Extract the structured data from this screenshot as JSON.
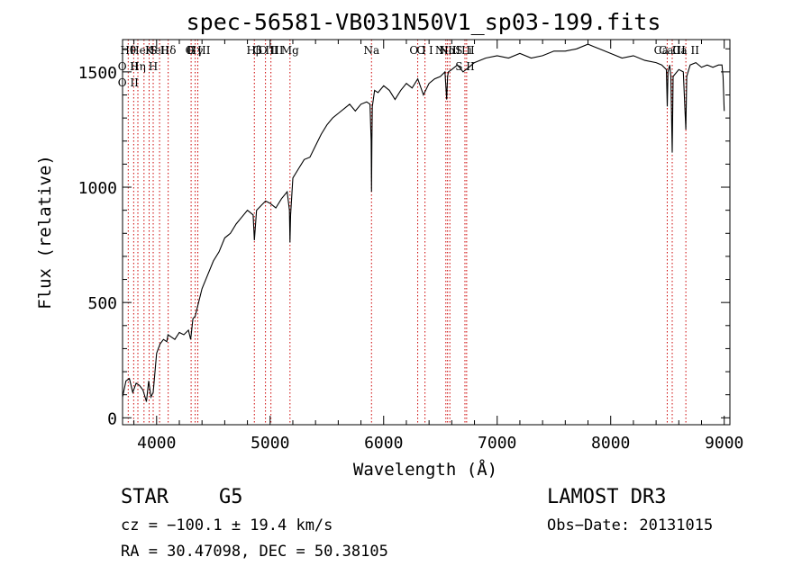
{
  "chart_data": {
    "type": "line",
    "title": "spec-56581-VB031N50V1_sp03-199.fits",
    "xlabel": "Wavelength (Å)",
    "ylabel": "Flux (relative)",
    "xlim": [
      3700,
      9050
    ],
    "ylim": [
      -30,
      1640
    ],
    "xticks": [
      4000,
      5000,
      6000,
      7000,
      8000,
      9000
    ],
    "yticks": [
      0,
      500,
      1000,
      1500
    ],
    "series": [
      {
        "name": "flux",
        "x": [
          3700,
          3730,
          3760,
          3790,
          3820,
          3850,
          3880,
          3910,
          3930,
          3950,
          3970,
          4000,
          4030,
          4060,
          4090,
          4100,
          4130,
          4160,
          4200,
          4240,
          4280,
          4300,
          4320,
          4340,
          4360,
          4400,
          4450,
          4500,
          4550,
          4600,
          4650,
          4700,
          4750,
          4800,
          4850,
          4861,
          4880,
          4920,
          4960,
          5000,
          5050,
          5100,
          5150,
          5170,
          5175,
          5180,
          5200,
          5250,
          5300,
          5350,
          5400,
          5450,
          5500,
          5550,
          5600,
          5650,
          5700,
          5750,
          5800,
          5850,
          5880,
          5890,
          5893,
          5896,
          5900,
          5920,
          5950,
          6000,
          6050,
          6100,
          6150,
          6200,
          6250,
          6300,
          6350,
          6400,
          6450,
          6500,
          6540,
          6555,
          6563,
          6570,
          6600,
          6650,
          6700,
          6750,
          6800,
          6900,
          7000,
          7100,
          7200,
          7300,
          7400,
          7500,
          7600,
          7700,
          7800,
          7850,
          7900,
          8000,
          8100,
          8200,
          8300,
          8400,
          8450,
          8490,
          8498,
          8505,
          8520,
          8530,
          8542,
          8550,
          8600,
          8640,
          8662,
          8670,
          8700,
          8750,
          8800,
          8850,
          8900,
          8950,
          8980,
          8990,
          9000
        ],
        "values": [
          90,
          160,
          170,
          110,
          150,
          140,
          120,
          70,
          160,
          90,
          110,
          280,
          320,
          340,
          330,
          360,
          350,
          340,
          370,
          360,
          380,
          340,
          430,
          440,
          480,
          560,
          620,
          680,
          720,
          780,
          800,
          840,
          870,
          900,
          880,
          770,
          900,
          920,
          940,
          930,
          910,
          950,
          980,
          900,
          760,
          880,
          1040,
          1080,
          1120,
          1130,
          1180,
          1230,
          1270,
          1300,
          1320,
          1340,
          1360,
          1330,
          1360,
          1370,
          1360,
          1200,
          980,
          1200,
          1350,
          1420,
          1410,
          1440,
          1420,
          1380,
          1420,
          1450,
          1430,
          1470,
          1400,
          1450,
          1470,
          1480,
          1500,
          1380,
          1480,
          1500,
          1510,
          1530,
          1500,
          1520,
          1540,
          1560,
          1570,
          1560,
          1580,
          1560,
          1570,
          1590,
          1590,
          1600,
          1620,
          1610,
          1600,
          1580,
          1560,
          1570,
          1550,
          1540,
          1530,
          1510,
          1350,
          1500,
          1530,
          1480,
          1150,
          1480,
          1510,
          1500,
          1250,
          1480,
          1530,
          1540,
          1520,
          1530,
          1520,
          1530,
          1530,
          1480,
          1330
        ]
      }
    ],
    "lines": [
      {
        "wave": 3750,
        "labels": [
          "Hθ",
          "O II",
          "O II"
        ]
      },
      {
        "wave": 3798,
        "labels": []
      },
      {
        "wave": 3835,
        "labels": [
          "He",
          "Hη"
        ]
      },
      {
        "wave": 3889,
        "labels": []
      },
      {
        "wave": 3934,
        "labels": [
          "K"
        ]
      },
      {
        "wave": 3970,
        "labels": [
          "He",
          "H"
        ]
      },
      {
        "wave": 4026,
        "labels": [
          "S II"
        ]
      },
      {
        "wave": 4102,
        "labels": [
          "Hδ"
        ]
      },
      {
        "wave": 4304,
        "labels": [
          "G"
        ]
      },
      {
        "wave": 4340,
        "labels": [
          "Hγ"
        ]
      },
      {
        "wave": 4363,
        "labels": [
          "O III"
        ]
      },
      {
        "wave": 4861,
        "labels": [
          "Hβ"
        ]
      },
      {
        "wave": 4959,
        "labels": [
          "O III"
        ]
      },
      {
        "wave": 5007,
        "labels": [
          "O III"
        ]
      },
      {
        "wave": 5175,
        "labels": [
          "Mg"
        ]
      },
      {
        "wave": 5893,
        "labels": [
          "Na"
        ]
      },
      {
        "wave": 6300,
        "labels": [
          "O I"
        ]
      },
      {
        "wave": 6364,
        "labels": [
          "O I"
        ]
      },
      {
        "wave": 6548,
        "labels": [
          "N II"
        ]
      },
      {
        "wave": 6563,
        "labels": [
          "Hα"
        ]
      },
      {
        "wave": 6583,
        "labels": [
          "N II"
        ]
      },
      {
        "wave": 6716,
        "labels": [
          "S II",
          "S II"
        ]
      },
      {
        "wave": 6731,
        "labels": [
          "Li"
        ]
      },
      {
        "wave": 8498,
        "labels": [
          "Ca II"
        ]
      },
      {
        "wave": 8542,
        "labels": [
          "Ca II"
        ]
      },
      {
        "wave": 8662,
        "labels": [
          "Ca II"
        ]
      }
    ]
  },
  "info": {
    "class": "STAR",
    "subclass": "G5",
    "survey": "LAMOST DR3",
    "cz": "cz = −100.1 ± 19.4 km/s",
    "obs_date": "Obs−Date: 20131015",
    "radec": "RA =  30.47098, DEC =  50.38105"
  },
  "colors": {
    "spectrum": "#000000",
    "line_marker": "#cc0000"
  }
}
